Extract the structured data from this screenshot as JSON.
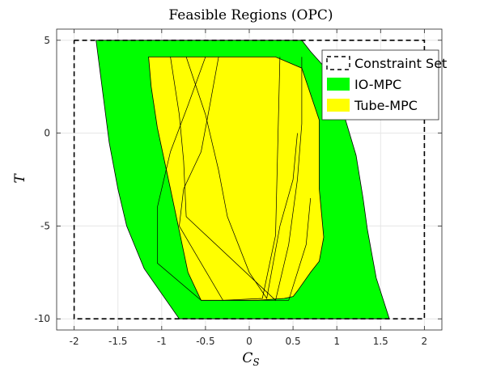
{
  "chart_data": {
    "type": "area",
    "title": "Feasible Regions (OPC)",
    "xlabel": {
      "main": "C",
      "sub": "S"
    },
    "ylabel": "T",
    "xlim": [
      -2.2,
      2.2
    ],
    "ylim": [
      -10.6,
      5.6
    ],
    "xticks": [
      -2,
      -1.5,
      -1,
      -0.5,
      0,
      0.5,
      1,
      1.5,
      2
    ],
    "xtick_labels": [
      "-2",
      "-1.5",
      "-1",
      "-0.5",
      "0",
      "0.5",
      "1",
      "1.5",
      "2"
    ],
    "yticks": [
      -10,
      -5,
      0,
      5
    ],
    "ytick_labels": [
      "-10",
      "-5",
      "0",
      "5"
    ],
    "grid": true,
    "legend_position": "top-right",
    "colors": {
      "constraint": "#000000",
      "io_mpc": "#00ff00",
      "tube_mpc": "#ffff00"
    },
    "series": [
      {
        "name": "Constraint Set",
        "style": "dashed",
        "x": [
          -2,
          2,
          2,
          -2,
          -2
        ],
        "y": [
          5,
          5,
          -10,
          -10,
          5
        ]
      },
      {
        "name": "IO-MPC",
        "style": "filled",
        "x": [
          -1.75,
          0.6,
          0.7,
          0.85,
          1.0,
          1.1,
          1.22,
          1.3,
          1.35,
          1.45,
          1.6,
          -0.8,
          -1.2,
          -1.4,
          -1.5,
          -1.6,
          -1.75
        ],
        "y": [
          5,
          5,
          4.4,
          3.6,
          2.5,
          0.7,
          -1.2,
          -3.5,
          -5.2,
          -7.8,
          -10,
          -10,
          -7.3,
          -5.0,
          -3.0,
          -0.5,
          5
        ]
      },
      {
        "name": "Tube-MPC",
        "style": "filled",
        "x": [
          -1.15,
          -1.12,
          -1.05,
          -0.9,
          -0.7,
          -0.55,
          0.1,
          0.4,
          0.5,
          0.55,
          0.7,
          0.8,
          0.85,
          0.8,
          0.8,
          0.6,
          0.3,
          -0.55,
          -0.95,
          -1.1,
          -1.15,
          -1.15
        ],
        "y": [
          4.1,
          2.5,
          0.3,
          -3.0,
          -7.5,
          -9.0,
          -9.0,
          -8.9,
          -8.8,
          -8.5,
          -7.5,
          -6.9,
          -5.6,
          -3.0,
          0.7,
          3.5,
          4.1,
          4.1,
          4.1,
          4.1,
          4.1,
          4.1
        ]
      }
    ],
    "inner_outlines": [
      {
        "x": [
          -0.9,
          -0.8,
          -0.75,
          -0.72,
          0.3,
          0.45,
          0.55,
          0.6,
          0.6
        ],
        "y": [
          4.1,
          1.0,
          -1.5,
          -4.5,
          -9.0,
          -6.0,
          -2.5,
          0.5,
          4.1
        ]
      },
      {
        "x": [
          -0.72,
          -0.5,
          -0.35,
          -0.25,
          0.0,
          0.2,
          0.35,
          0.5,
          0.55
        ],
        "y": [
          4.1,
          1.0,
          -2.0,
          -4.5,
          -7.5,
          -8.9,
          -5.0,
          -2.5,
          0.0
        ]
      },
      {
        "x": [
          -0.35,
          -0.45,
          -0.55,
          -0.75,
          -0.8,
          -0.3,
          0.15,
          0.3,
          0.35
        ],
        "y": [
          4.1,
          1.5,
          -1.0,
          -3.0,
          -5.0,
          -9.0,
          -8.9,
          -5.5,
          4.1
        ]
      },
      {
        "x": [
          -0.5,
          -0.7,
          -0.9,
          -1.05,
          -1.05,
          -0.55,
          0.45,
          0.65,
          0.7
        ],
        "y": [
          4.1,
          1.5,
          -1.0,
          -4.0,
          -7.0,
          -9.0,
          -9.0,
          -6.0,
          -3.5
        ]
      }
    ]
  },
  "legend": {
    "items": [
      {
        "label": "Constraint Set",
        "swatch": "dashed"
      },
      {
        "label": "IO-MPC",
        "swatch": "#00ff00"
      },
      {
        "label": "Tube-MPC",
        "swatch": "#ffff00"
      }
    ]
  }
}
